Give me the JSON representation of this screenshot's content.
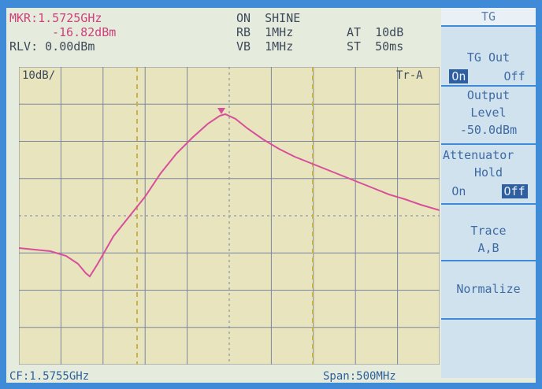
{
  "header": {
    "marker_freq": "MKR:1.5725GHz",
    "marker_level": "-16.82dBm",
    "ref_level": "RLV: 0.00dBm",
    "mode": "ON  SHINE",
    "rb": "RB  1MHz",
    "vb": "VB  1MHz",
    "at": "AT  10dB",
    "st": "ST  50ms"
  },
  "plot": {
    "scale": "10dB/",
    "trace_label": "Tr-A"
  },
  "footer": {
    "center_freq": "CF:1.5755GHz",
    "span": "Span:500MHz"
  },
  "menu": {
    "title": "TG",
    "tg_out_label": "TG Out",
    "tg_out_on": "On",
    "tg_out_off": "Off",
    "output_label_1": "Output",
    "output_label_2": "Level",
    "output_value": "-50.0dBm",
    "attenuator_label": "Attenuator",
    "attenuator_label_2": "Hold",
    "att_on": "On",
    "att_off": "Off",
    "trace_label": "Trace",
    "trace_value": "A,B",
    "normalize_label": "Normalize"
  },
  "colors": {
    "trace": "#d74f9a",
    "grid": "#7b86a0",
    "menu_bg": "#cfe2ee",
    "frame": "#3f8bd8"
  }
}
